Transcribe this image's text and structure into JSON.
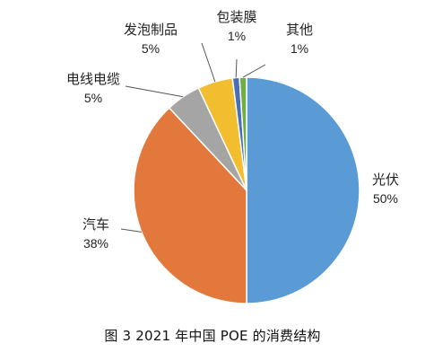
{
  "chart_data": {
    "type": "pie",
    "title": "图 3  2021 年中国 POE 的消费结构",
    "slices": [
      {
        "label": "光伏",
        "value": 50,
        "value_label": "50%",
        "color": "#5b9bd5"
      },
      {
        "label": "汽车",
        "value": 38,
        "value_label": "38%",
        "color": "#e2783c"
      },
      {
        "label": "电线电缆",
        "value": 5,
        "value_label": "5%",
        "color": "#a5a5a5"
      },
      {
        "label": "发泡制品",
        "value": 5,
        "value_label": "5%",
        "color": "#f2be2f"
      },
      {
        "label": "包装膜",
        "value": 1,
        "value_label": "1%",
        "color": "#4a6eb5"
      },
      {
        "label": "其他",
        "value": 1,
        "value_label": "1%",
        "color": "#71ad47"
      }
    ],
    "direction": "clockwise",
    "start_angle": "12 o'clock"
  }
}
